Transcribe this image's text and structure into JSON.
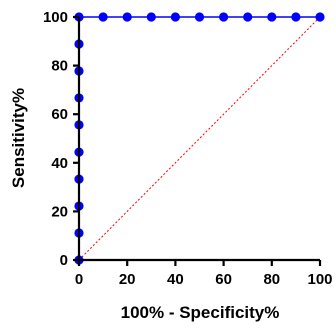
{
  "chart_data": {
    "type": "line",
    "title": "",
    "xlabel": "100% - Specificity%",
    "ylabel": "Sensitivity%",
    "xlim": [
      0,
      100
    ],
    "ylim": [
      0,
      100
    ],
    "x_ticks": [
      0,
      20,
      40,
      60,
      80,
      100
    ],
    "y_ticks": [
      0,
      20,
      40,
      60,
      80,
      100
    ],
    "x_tick_labels": [
      "0",
      "20",
      "40",
      "60",
      "80",
      "100"
    ],
    "y_tick_labels": [
      "0",
      "20",
      "40",
      "60",
      "80",
      "100"
    ],
    "grid": false,
    "legend": "none",
    "series": [
      {
        "color": "#0000ff",
        "marker": "circle",
        "x": [
          0,
          0,
          0,
          0,
          0,
          0,
          0,
          0,
          0,
          0,
          10,
          20,
          30,
          40,
          50,
          60,
          70,
          80,
          90,
          100
        ],
        "y": [
          0,
          11.1,
          22.2,
          33.3,
          44.4,
          55.6,
          66.7,
          77.8,
          88.9,
          100,
          100,
          100,
          100,
          100,
          100,
          100,
          100,
          100,
          100,
          100
        ]
      },
      {
        "color": "#ff0000",
        "style": "dotted",
        "marker": "none",
        "x": [
          0,
          100
        ],
        "y": [
          0,
          100
        ]
      }
    ]
  }
}
